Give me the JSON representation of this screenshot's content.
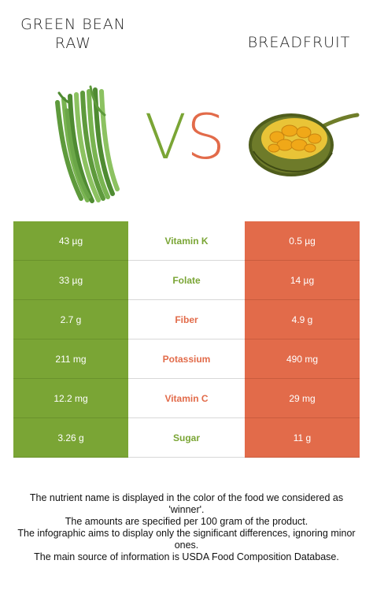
{
  "left_food": {
    "name_line1": "GREEN BEAN",
    "name_line2": "RAW",
    "color": "#7aa535"
  },
  "right_food": {
    "name": "BREADFRUIT",
    "color": "#e26b4a"
  },
  "vs": {
    "v": "V",
    "s": "S"
  },
  "rows": [
    {
      "left": "43 µg",
      "nutrient": "Vitamin K",
      "right": "0.5 µg",
      "winner": "left"
    },
    {
      "left": "33 µg",
      "nutrient": "Folate",
      "right": "14 µg",
      "winner": "left"
    },
    {
      "left": "2.7 g",
      "nutrient": "Fiber",
      "right": "4.9 g",
      "winner": "right"
    },
    {
      "left": "211 mg",
      "nutrient": "Potassium",
      "right": "490 mg",
      "winner": "right"
    },
    {
      "left": "12.2 mg",
      "nutrient": "Vitamin C",
      "right": "29 mg",
      "winner": "right"
    },
    {
      "left": "3.26 g",
      "nutrient": "Sugar",
      "right": "11 g",
      "winner": "left"
    }
  ],
  "footer": [
    "The nutrient name is displayed in the color of the food we considered as 'winner'.",
    "The amounts are specified per 100 gram of the product.",
    "The infographic aims to display only the significant differences, ignoring minor ones.",
    "The main source of information is USDA Food Composition Database."
  ]
}
